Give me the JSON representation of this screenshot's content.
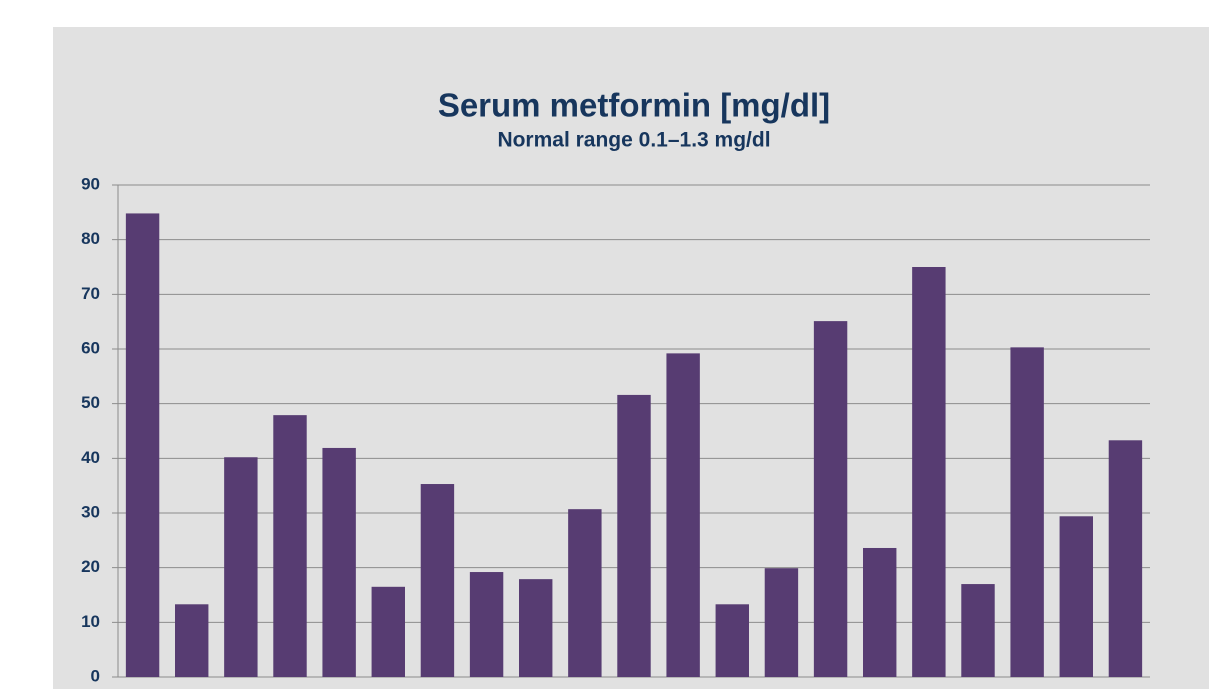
{
  "chart_data": {
    "type": "bar",
    "title": "Serum metformin [mg/dl]",
    "subtitle": "Normal range 0.1–1.3 mg/dl",
    "categories": [
      null,
      null,
      null,
      null,
      null,
      null,
      null,
      null,
      null,
      null,
      null,
      null,
      null,
      null,
      null,
      null,
      null,
      null,
      null,
      null,
      null
    ],
    "values": [
      84.8,
      13.3,
      40.2,
      47.9,
      41.9,
      16.5,
      35.3,
      19.2,
      17.9,
      30.7,
      51.6,
      59.2,
      13.3,
      19.9,
      65.1,
      23.6,
      75.0,
      17.0,
      60.3,
      29.4,
      43.3
    ],
    "color": "#573c72",
    "ylim": [
      0,
      90
    ],
    "yticks": [
      0,
      10,
      20,
      30,
      40,
      50,
      60,
      70,
      80,
      90
    ],
    "grid": true
  }
}
